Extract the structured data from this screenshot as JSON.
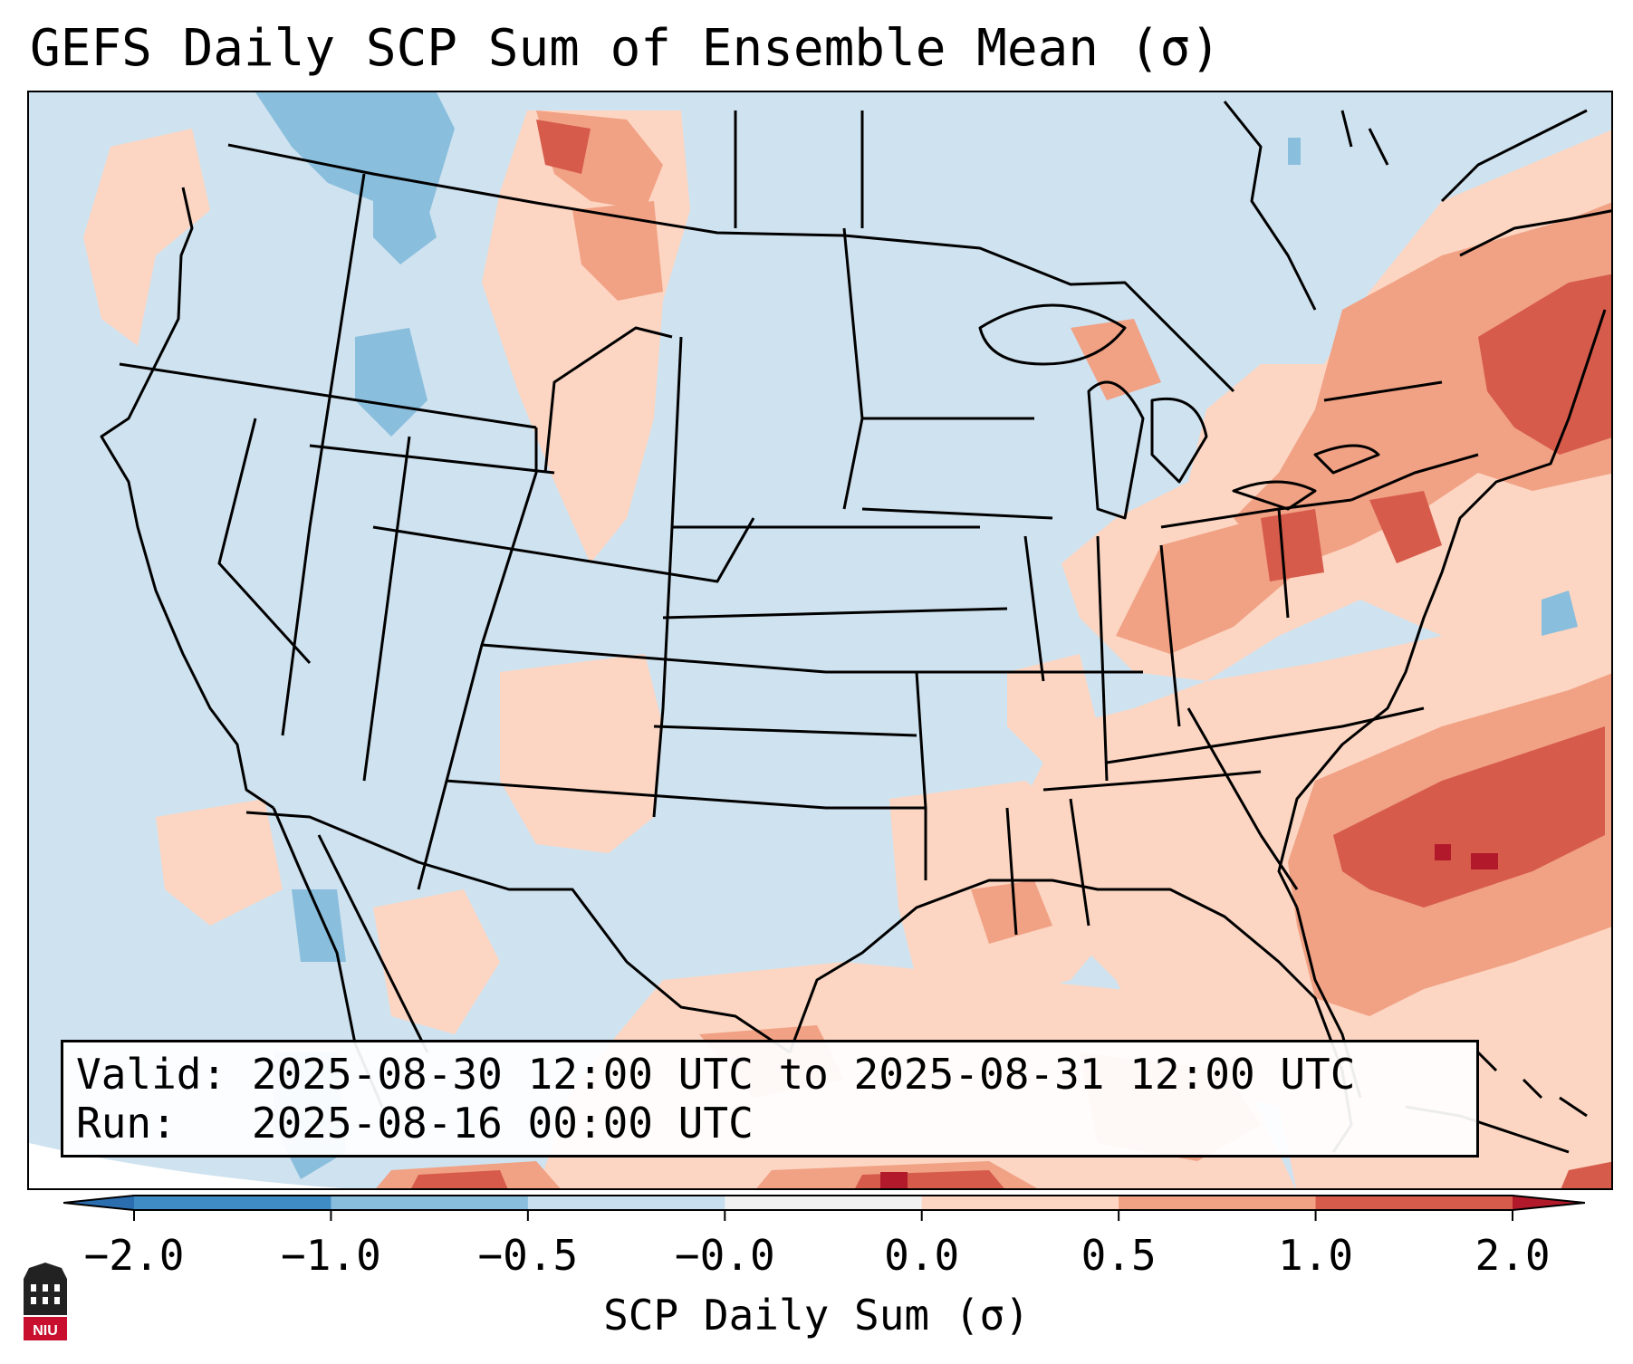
{
  "title": "GEFS Daily SCP Sum of Ensemble Mean (σ)",
  "info": {
    "valid_label": "Valid:",
    "valid_text": "2025-08-30 12:00 UTC to 2025-08-31 12:00 UTC",
    "run_label": "Run:",
    "run_text": "2025-08-16 00:00 UTC"
  },
  "colorbar": {
    "label": "SCP Daily Sum (σ)",
    "ticks": [
      "−2.0",
      "−1.0",
      "−0.5",
      "−0.0",
      "0.0",
      "0.5",
      "1.0",
      "2.0"
    ],
    "colors": [
      "#3f8cc5",
      "#89bedd",
      "#c7dfee",
      "#f1f1f1",
      "#fcd6c3",
      "#f1a184",
      "#d65b4b"
    ],
    "extend_low_color": "#2a6eb0",
    "extend_high_color": "#b21a2b"
  },
  "map": {
    "region": "Contiguous United States",
    "background_color": "#cfe2ef",
    "field_colors": {
      "light_positive": "#fcd6c3",
      "moderate_positive": "#f1a184",
      "strong_positive": "#d65b4b",
      "very_strong_positive": "#b21a2b",
      "light_negative": "#89bedd"
    }
  },
  "logo": {
    "text": "NIU"
  }
}
